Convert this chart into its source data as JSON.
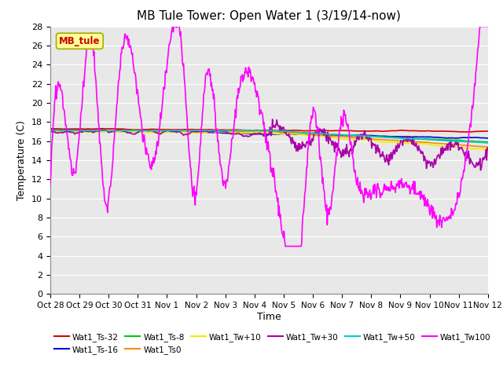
{
  "title": "MB Tule Tower: Open Water 1 (3/19/14-now)",
  "ylabel": "Temperature (C)",
  "xlabel": "Time",
  "annotation_text": "MB_tule",
  "ylim": [
    0,
    28
  ],
  "yticks": [
    0,
    2,
    4,
    6,
    8,
    10,
    12,
    14,
    16,
    18,
    20,
    22,
    24,
    26,
    28
  ],
  "series": [
    {
      "name": "Wat1_Ts-32",
      "color": "#dd0000",
      "lw": 1.2
    },
    {
      "name": "Wat1_Ts-16",
      "color": "#0000dd",
      "lw": 1.2
    },
    {
      "name": "Wat1_Ts-8",
      "color": "#00cc00",
      "lw": 1.2
    },
    {
      "name": "Wat1_Ts0",
      "color": "#ff8800",
      "lw": 1.2
    },
    {
      "name": "Wat1_Tw+10",
      "color": "#eeee00",
      "lw": 1.2
    },
    {
      "name": "Wat1_Tw+30",
      "color": "#aa00aa",
      "lw": 1.2
    },
    {
      "name": "Wat1_Tw+50",
      "color": "#00cccc",
      "lw": 1.2
    },
    {
      "name": "Wat1_Tw100",
      "color": "#ff00ff",
      "lw": 1.2
    }
  ],
  "xtick_labels": [
    "Oct 28",
    "Oct 29",
    "Oct 30",
    "Oct 31",
    "Nov 1",
    "Nov 2",
    "Nov 3",
    "Nov 4",
    "Nov 5",
    "Nov 6",
    "Nov 7",
    "Nov 8",
    "Nov 9",
    "Nov 10",
    "Nov 11",
    "Nov 12"
  ],
  "plot_bg": "#e8e8e8",
  "fig_bg": "#ffffff",
  "grid_color": "#ffffff"
}
